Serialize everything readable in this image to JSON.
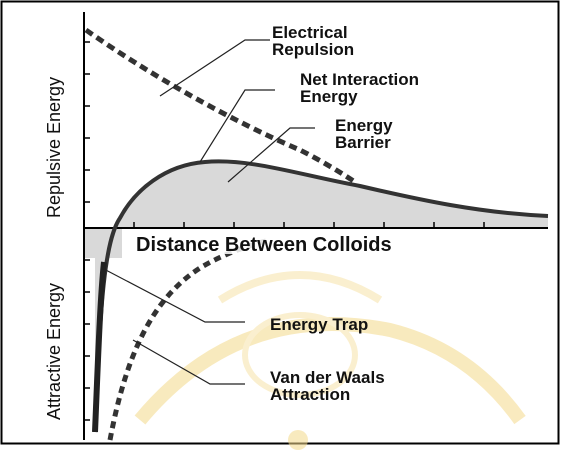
{
  "diagram": {
    "axes": {
      "repulsive_label": "Repulsive Energy",
      "attractive_label": "Attractive Energy",
      "x_label": "Distance Between Colloids"
    },
    "labels": {
      "electrical_repulsion": [
        "Electrical",
        "Repulsion"
      ],
      "net_interaction": [
        "Net Interaction",
        "Energy"
      ],
      "energy_barrier": [
        "Energy",
        "Barrier"
      ],
      "energy_trap": "Energy Trap",
      "van_der_waals": [
        "Van der Waals",
        "Attraction"
      ]
    },
    "colors": {
      "curve": "#333333",
      "fill": "#d9d9d9",
      "watermark": "#f4d98a",
      "border": "#000000"
    }
  }
}
